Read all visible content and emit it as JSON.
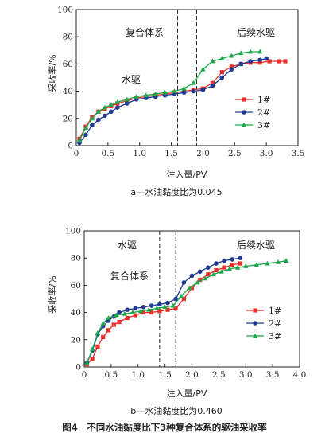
{
  "caption": "图4　不同水油黏度比下3种复合体系的驱油采收率",
  "chart_data": [
    {
      "type": "line",
      "subtitle": "a—水油黏度比为0.045",
      "xlabel": "注入量/PV",
      "ylabel": "采收率/%",
      "xlim": [
        0,
        3.5
      ],
      "ylim": [
        0,
        100
      ],
      "xticks": [
        "0",
        "0.5",
        "1.0",
        "1.5",
        "2.0",
        "2.5",
        "3.0",
        "3.5"
      ],
      "yticks": [
        "0",
        "20",
        "40",
        "60",
        "80",
        "100"
      ],
      "vlines": [
        1.6,
        1.9
      ],
      "annotations": [
        "复合体系",
        "水驱",
        "后续水驱"
      ],
      "legend": {
        "position": "right",
        "entries": [
          "1#",
          "2#",
          "3#"
        ]
      },
      "series": [
        {
          "name": "1#",
          "color": "#e8312a",
          "marker": "square",
          "x": [
            0.05,
            0.15,
            0.25,
            0.35,
            0.45,
            0.55,
            0.65,
            0.8,
            0.95,
            1.1,
            1.25,
            1.4,
            1.55,
            1.7,
            1.85,
            2.0,
            2.15,
            2.3,
            2.45,
            2.6,
            2.75,
            2.9,
            3.05,
            3.2,
            3.3
          ],
          "y": [
            5,
            14,
            21,
            25,
            27,
            29,
            31,
            33,
            35,
            36,
            37,
            38,
            39,
            40,
            41,
            42,
            46,
            54,
            58,
            60,
            61,
            61,
            62,
            62,
            62
          ]
        },
        {
          "name": "2#",
          "color": "#1f3a93",
          "marker": "circle",
          "x": [
            0.05,
            0.15,
            0.25,
            0.35,
            0.45,
            0.55,
            0.65,
            0.8,
            0.95,
            1.1,
            1.25,
            1.4,
            1.55,
            1.7,
            1.85,
            2.0,
            2.15,
            2.3,
            2.45,
            2.6,
            2.75,
            2.9,
            3.0
          ],
          "y": [
            2,
            8,
            15,
            19,
            22,
            25,
            28,
            31,
            34,
            35,
            36,
            37,
            38,
            39,
            40,
            41,
            44,
            50,
            56,
            60,
            62,
            63,
            64
          ]
        },
        {
          "name": "3#",
          "color": "#1aa84a",
          "marker": "triangle",
          "x": [
            0.05,
            0.15,
            0.25,
            0.35,
            0.45,
            0.55,
            0.65,
            0.8,
            0.95,
            1.1,
            1.25,
            1.4,
            1.55,
            1.7,
            1.85,
            2.0,
            2.15,
            2.3,
            2.45,
            2.6,
            2.75,
            2.9
          ],
          "y": [
            4,
            13,
            20,
            25,
            28,
            30,
            32,
            34,
            36,
            37,
            38,
            39,
            40,
            42,
            46,
            56,
            62,
            64,
            66,
            68,
            69,
            69
          ]
        }
      ]
    },
    {
      "type": "line",
      "subtitle": "b—水油黏度比为0.460",
      "xlabel": "注入量/PV",
      "ylabel": "采收率/%",
      "xlim": [
        0,
        4.0
      ],
      "ylim": [
        0,
        100
      ],
      "xticks": [
        "0",
        "0.5",
        "1.0",
        "1.5",
        "2.0",
        "2.5",
        "3.0",
        "3.5",
        "4.0"
      ],
      "yticks": [
        "0",
        "20",
        "40",
        "60",
        "80",
        "100"
      ],
      "vlines": [
        1.4,
        1.7
      ],
      "annotations": [
        "水驱",
        "复合体系",
        "后续水驱"
      ],
      "legend": {
        "position": "right",
        "entries": [
          "1#",
          "2#",
          "3#"
        ]
      },
      "series": [
        {
          "name": "1#",
          "color": "#e8312a",
          "marker": "square",
          "x": [
            0.05,
            0.15,
            0.25,
            0.35,
            0.45,
            0.55,
            0.65,
            0.8,
            0.95,
            1.1,
            1.25,
            1.4,
            1.55,
            1.7,
            1.85,
            2.0,
            2.15,
            2.3,
            2.45,
            2.6,
            2.75,
            2.9
          ],
          "y": [
            2,
            6,
            15,
            22,
            27,
            31,
            33,
            36,
            38,
            40,
            40,
            41,
            42,
            43,
            50,
            58,
            64,
            68,
            71,
            73,
            75,
            76
          ]
        },
        {
          "name": "2#",
          "color": "#1f3a93",
          "marker": "circle",
          "x": [
            0.05,
            0.15,
            0.25,
            0.35,
            0.45,
            0.55,
            0.65,
            0.8,
            0.95,
            1.1,
            1.25,
            1.4,
            1.55,
            1.7,
            1.85,
            2.0,
            2.15,
            2.3,
            2.45,
            2.6,
            2.75,
            2.9
          ],
          "y": [
            3,
            12,
            24,
            30,
            34,
            37,
            40,
            42,
            43,
            44,
            45,
            46,
            47,
            50,
            62,
            67,
            70,
            73,
            76,
            78,
            79,
            80
          ]
        },
        {
          "name": "3#",
          "color": "#1aa84a",
          "marker": "triangle",
          "x": [
            0.05,
            0.15,
            0.25,
            0.35,
            0.45,
            0.6,
            0.75,
            0.9,
            1.05,
            1.2,
            1.35,
            1.5,
            1.65,
            1.8,
            1.95,
            2.1,
            2.25,
            2.4,
            2.55,
            2.7,
            2.85,
            3.0,
            3.2,
            3.4,
            3.6,
            3.75
          ],
          "y": [
            3,
            13,
            25,
            32,
            36,
            38,
            39,
            40,
            41,
            42,
            43,
            44,
            45,
            52,
            58,
            62,
            65,
            68,
            70,
            72,
            73,
            74,
            75,
            76,
            77,
            78
          ]
        }
      ]
    }
  ]
}
